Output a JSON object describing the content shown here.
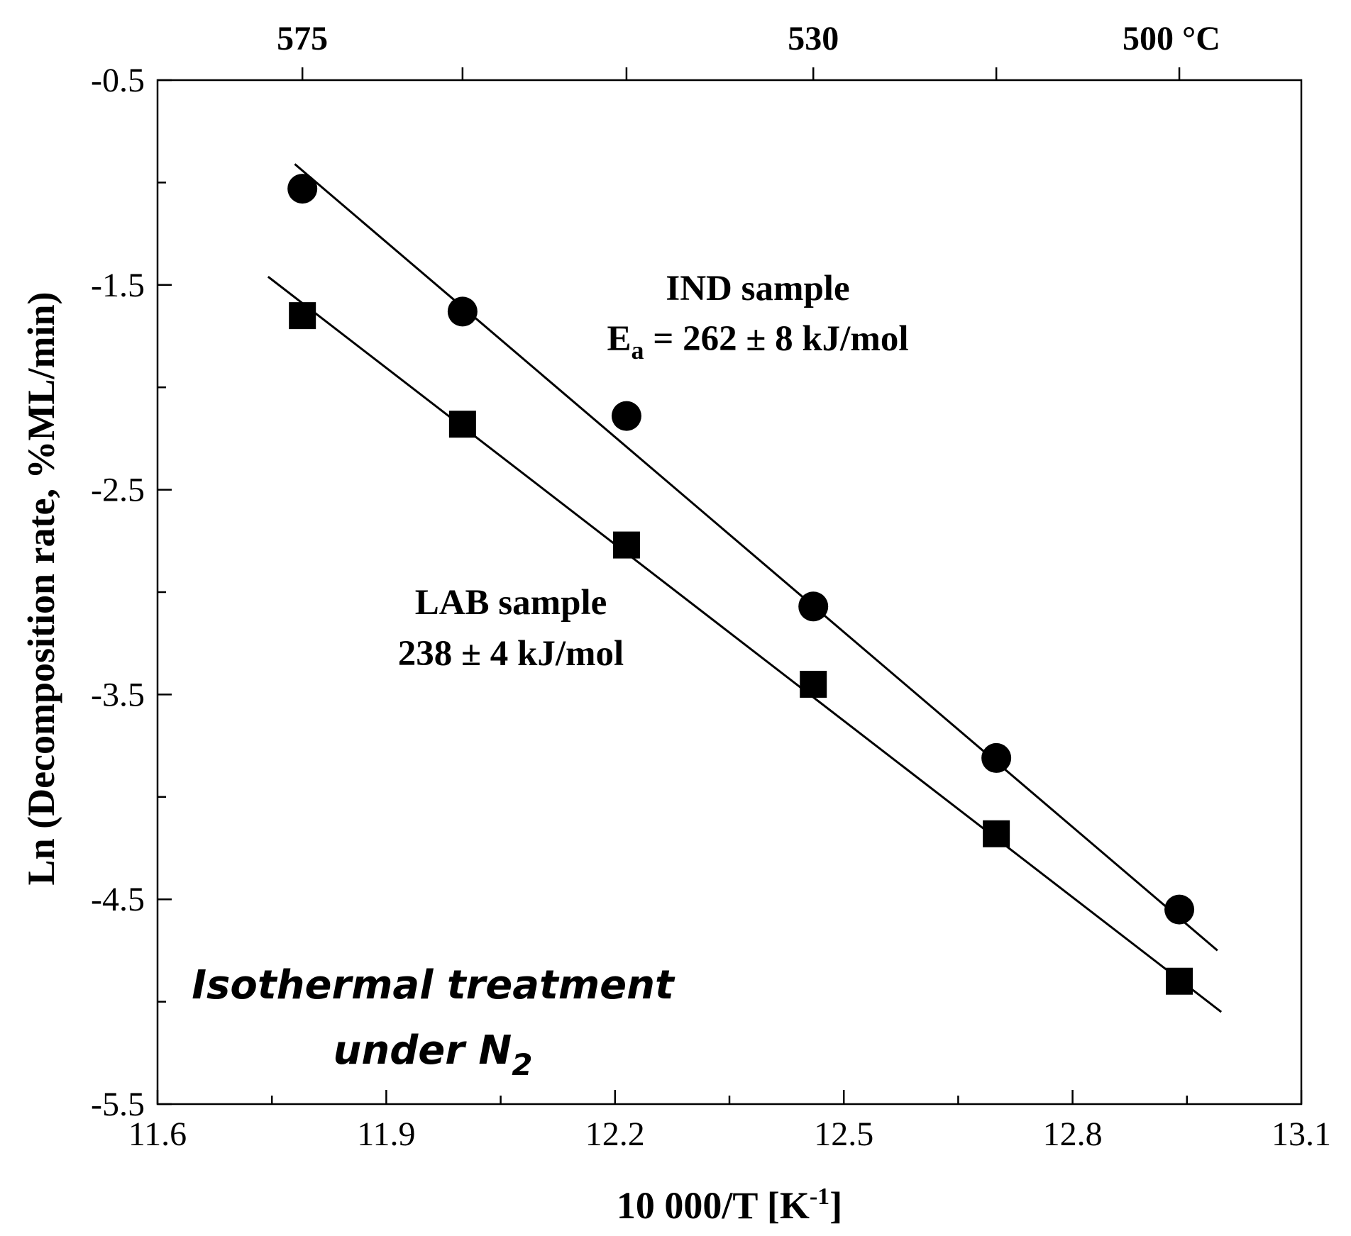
{
  "chart_data": {
    "type": "scatter",
    "xlabel": "10 000/T [K",
    "xlabel_sup": "-1",
    "xlabel_end": "]",
    "ylabel": "Ln (Decomposition rate, %ML/min)",
    "xlim": [
      11.6,
      13.1
    ],
    "ylim": [
      -5.5,
      -0.5
    ],
    "x_ticks": [
      11.6,
      11.9,
      12.2,
      12.5,
      12.8,
      13.1
    ],
    "x_tick_labels": [
      "11.6",
      "11.9",
      "12.2",
      "12.5",
      "12.8",
      "13.1"
    ],
    "y_ticks": [
      -0.5,
      -1.5,
      -2.5,
      -3.5,
      -4.5,
      -5.5
    ],
    "y_tick_labels": [
      "-0.5",
      "-1.5",
      "-2.5",
      "-3.5",
      "-4.5",
      "-5.5"
    ],
    "top_axis": {
      "labels": [
        "575",
        "530",
        "500 °C"
      ],
      "label_x": [
        11.79,
        12.46,
        12.94
      ],
      "tick_x": [
        11.79,
        12.0,
        12.215,
        12.46,
        12.7,
        12.94
      ]
    },
    "grid": false,
    "series": [
      {
        "marker": "circle",
        "x": [
          11.79,
          12.0,
          12.215,
          12.46,
          12.7,
          12.94
        ],
        "y": [
          -1.03,
          -1.63,
          -2.14,
          -3.07,
          -3.81,
          -4.55
        ],
        "fit": {
          "x": [
            11.78,
            12.99
          ],
          "y": [
            -0.91,
            -4.75
          ]
        }
      },
      {
        "marker": "square",
        "x": [
          11.79,
          12.0,
          12.215,
          12.46,
          12.7,
          12.94
        ],
        "y": [
          -1.65,
          -2.18,
          -2.77,
          -3.45,
          -4.18,
          -4.9
        ],
        "fit": {
          "x": [
            11.745,
            12.995
          ],
          "y": [
            -1.46,
            -5.05
          ]
        }
      }
    ],
    "annotations": {
      "ind_title": "IND sample",
      "ind_energy_prefix": "E",
      "ind_energy_sub": "a",
      "ind_energy_value": " = 262 ± 8 kJ/mol",
      "lab_title": "LAB sample",
      "lab_energy": "238 ± 4 kJ/mol",
      "treatment_line1": "Isothermal treatment",
      "treatment_line2_prefix": "under N",
      "treatment_line2_sub": "2"
    }
  }
}
